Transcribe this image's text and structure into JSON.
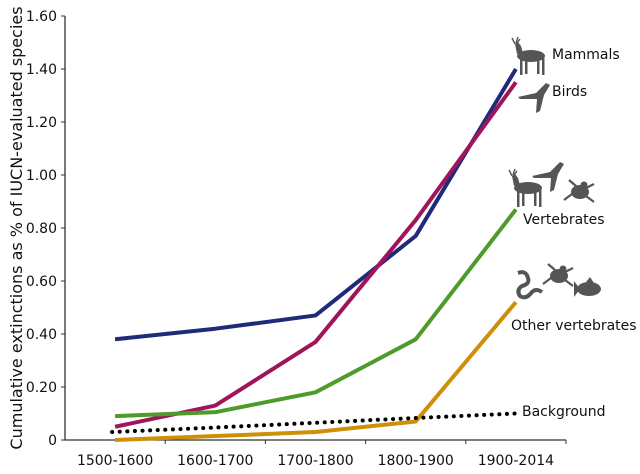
{
  "chart_data": {
    "type": "line",
    "title": "",
    "xlabel": "",
    "ylabel": "Cumulative extinctions as % of IUCN-evaluated species",
    "categories": [
      "1500-1600",
      "1600-1700",
      "1700-1800",
      "1800-1900",
      "1900-2014"
    ],
    "ylim": [
      0,
      1.6
    ],
    "yticks": [
      "0",
      "0.20",
      "0.40",
      "0.60",
      "0.80",
      "1.00",
      "1.20",
      "1.40",
      "1.60"
    ],
    "grid": false,
    "legend": "inline labels at line ends",
    "series": [
      {
        "name": "Mammals",
        "color": "#1f2a78",
        "style": "solid",
        "values": [
          0.38,
          0.42,
          0.47,
          0.77,
          1.4
        ],
        "icons": [
          "deer-icon"
        ]
      },
      {
        "name": "Birds",
        "color": "#a0145a",
        "style": "solid",
        "values": [
          0.05,
          0.13,
          0.37,
          0.83,
          1.35
        ],
        "icons": [
          "bird-icon"
        ]
      },
      {
        "name": "Vertebrates",
        "color": "#4e9a2a",
        "style": "solid",
        "values": [
          0.09,
          0.105,
          0.18,
          0.38,
          0.87
        ],
        "icons": [
          "deer-icon",
          "bird-icon",
          "frog-icon"
        ]
      },
      {
        "name": "Other vertebrates",
        "color": "#d08f0a",
        "style": "solid",
        "values": [
          0.0,
          0.015,
          0.03,
          0.07,
          0.52
        ],
        "icons": [
          "snake-icon",
          "frog-icon",
          "fish-icon"
        ]
      },
      {
        "name": "Background",
        "color": "#000000",
        "style": "dotted",
        "values": [
          0.03,
          0.047,
          0.065,
          0.083,
          0.1
        ],
        "icons": []
      }
    ]
  }
}
